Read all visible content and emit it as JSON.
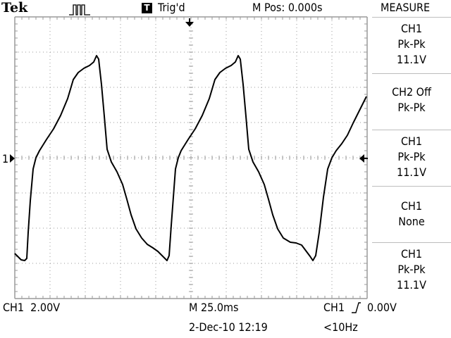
{
  "header": {
    "brand": "Tek",
    "pulse_icon": "single-pulse-icon",
    "trigger_badge": "T",
    "trigger_status": "Trig'd",
    "main_position": "M Pos: 0.000s"
  },
  "measure": {
    "title": "MEASURE",
    "slots": [
      {
        "source": "CH1",
        "type": "Pk-Pk",
        "value": "11.1V"
      },
      {
        "source": "CH2 Off",
        "type": "Pk-Pk",
        "value": ""
      },
      {
        "source": "CH1",
        "type": "Pk-Pk",
        "value": "11.1V"
      },
      {
        "source": "CH1",
        "type": "None",
        "value": ""
      },
      {
        "source": "CH1",
        "type": "Pk-Pk",
        "value": "11.1V"
      }
    ]
  },
  "display": {
    "channel_marker": "1",
    "trace_color": "#000000",
    "grid_color": "#9a9a9a"
  },
  "footer": {
    "ch1_scale": "CH1  2.00V",
    "timebase": "M 25.0ms",
    "trigger_source": "CH1",
    "trigger_slope_icon": "rising-edge-icon",
    "trigger_level": "0.00V",
    "datetime": "2-Dec-10 12:19",
    "frequency": "<10Hz"
  }
}
